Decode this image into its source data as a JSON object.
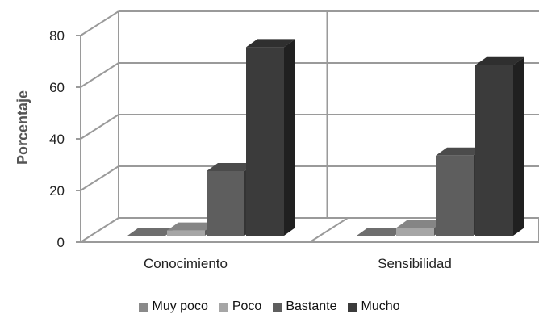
{
  "chart_data": {
    "type": "bar",
    "title": "",
    "xlabel": "",
    "ylabel": "Porcentaje",
    "ylim": [
      0,
      80
    ],
    "yticks": [
      0,
      20,
      40,
      60,
      80
    ],
    "categories": [
      "Conocimiento",
      "Sensibilidad"
    ],
    "series": [
      {
        "name": "Muy poco",
        "color": "#8a8a8a",
        "values": [
          0,
          0
        ]
      },
      {
        "name": "Poco",
        "color": "#a6a6a6",
        "values": [
          2,
          3
        ]
      },
      {
        "name": "Bastante",
        "color": "#5e5e5e",
        "values": [
          25,
          31
        ]
      },
      {
        "name": "Mucho",
        "color": "#3b3b3b",
        "values": [
          73,
          66
        ]
      }
    ],
    "grid": true,
    "legend_position": "bottom",
    "style": "3d-column"
  }
}
